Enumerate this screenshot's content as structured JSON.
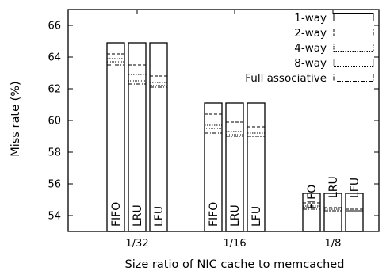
{
  "chart_data": {
    "type": "bar",
    "title": "",
    "xlabel": "Size ratio of NIC cache to memcached",
    "ylabel": "Miss rate (%)",
    "ylim": [
      53,
      67
    ],
    "yticks": [
      54,
      56,
      58,
      60,
      62,
      64,
      66
    ],
    "grid": false,
    "legend_position": "top-right",
    "categories": [
      "1/32",
      "1/16",
      "1/8"
    ],
    "policies": [
      "FIFO",
      "LRU",
      "LFU"
    ],
    "series": [
      {
        "name": "1-way",
        "line_style": "solid",
        "values": [
          [
            64.9,
            64.9,
            64.9
          ],
          [
            61.1,
            61.1,
            61.1
          ],
          [
            55.4,
            55.4,
            55.4
          ]
        ]
      },
      {
        "name": "2-way",
        "line_style": "dashed",
        "values": [
          [
            64.2,
            63.5,
            62.8
          ],
          [
            60.4,
            59.9,
            59.6
          ],
          [
            54.8,
            54.5,
            54.4
          ]
        ]
      },
      {
        "name": "4-way",
        "line_style": "dotted",
        "values": [
          [
            63.9,
            62.9,
            62.4
          ],
          [
            59.7,
            59.3,
            59.2
          ],
          [
            54.6,
            54.4,
            54.3
          ]
        ]
      },
      {
        "name": "8-way",
        "line_style": "fine-dotted",
        "values": [
          [
            63.7,
            62.5,
            62.2
          ],
          [
            59.5,
            59.1,
            59.0
          ],
          [
            54.5,
            54.3,
            54.3
          ]
        ]
      },
      {
        "name": "Full associative",
        "line_style": "dash-dot",
        "values": [
          [
            63.5,
            62.3,
            62.1
          ],
          [
            59.2,
            59.0,
            59.0
          ],
          [
            54.4,
            54.3,
            54.3
          ]
        ]
      }
    ]
  }
}
